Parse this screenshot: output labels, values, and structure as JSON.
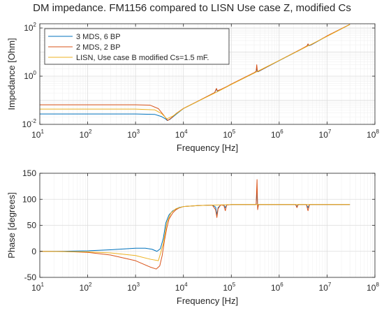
{
  "figure_title": "DM impedance. FM1156 compared to LISN Use case Z, modified Cs",
  "chart_data": [
    {
      "type": "line",
      "xscale": "log",
      "yscale": "log",
      "xlabel": "Frequency [Hz]",
      "ylabel": "Impedance [Ohm]",
      "xlim": [
        10,
        100000000
      ],
      "ylim": [
        0.01,
        150
      ],
      "xticks": [
        {
          "value": 10,
          "base": "10",
          "exp": "1"
        },
        {
          "value": 100,
          "base": "10",
          "exp": "2"
        },
        {
          "value": 1000,
          "base": "10",
          "exp": "3"
        },
        {
          "value": 10000,
          "base": "10",
          "exp": "4"
        },
        {
          "value": 100000,
          "base": "10",
          "exp": "5"
        },
        {
          "value": 1000000,
          "base": "10",
          "exp": "6"
        },
        {
          "value": 10000000,
          "base": "10",
          "exp": "7"
        },
        {
          "value": 100000000,
          "base": "10",
          "exp": "8"
        }
      ],
      "yticks": [
        {
          "value": 0.01,
          "base": "10",
          "exp": "-2"
        },
        {
          "value": 1,
          "base": "10",
          "exp": "0"
        },
        {
          "value": 100,
          "base": "10",
          "exp": "2"
        }
      ],
      "grid": true,
      "legend_position": "top-left",
      "series": [
        {
          "name": "3 MDS, 6 BP",
          "color": "#0072BD",
          "x": [
            10,
            100,
            1000,
            2500,
            3500,
            4200,
            4600,
            5200,
            7000,
            10000,
            20000,
            45000,
            47000,
            49000,
            51000,
            60000,
            80000,
            100000,
            300000,
            330000,
            340000,
            350000,
            360000,
            1000000,
            3000000,
            3800000,
            4000000,
            4200000,
            4600000,
            10000000,
            30000000
          ],
          "y": [
            0.027,
            0.027,
            0.027,
            0.026,
            0.021,
            0.017,
            0.0145,
            0.016,
            0.026,
            0.045,
            0.09,
            0.21,
            0.25,
            0.3,
            0.24,
            0.27,
            0.36,
            0.46,
            1.35,
            1.5,
            2.1,
            1.55,
            1.52,
            4.4,
            13.5,
            17.5,
            21,
            18.5,
            19.5,
            46,
            140
          ]
        },
        {
          "name": "2 MDS, 2 BP",
          "color": "#D95319",
          "x": [
            10,
            100,
            1000,
            2000,
            3000,
            4000,
            4700,
            5500,
            7000,
            10000,
            20000,
            45000,
            47000,
            49000,
            51000,
            60000,
            80000,
            100000,
            300000,
            330000,
            340000,
            350000,
            360000,
            1000000,
            3000000,
            3800000,
            4000000,
            4200000,
            4600000,
            10000000,
            30000000
          ],
          "y": [
            0.065,
            0.065,
            0.065,
            0.063,
            0.045,
            0.022,
            0.0145,
            0.018,
            0.028,
            0.046,
            0.092,
            0.21,
            0.26,
            0.31,
            0.25,
            0.28,
            0.37,
            0.47,
            1.4,
            1.6,
            3.0,
            1.7,
            1.55,
            4.5,
            14,
            18,
            22,
            19,
            20,
            47,
            142
          ]
        },
        {
          "name": "LISN, Use case B modified Cs=1.5 mF.",
          "color": "#EDB120",
          "x": [
            10,
            100,
            1000,
            2500,
            3500,
            4500,
            6000,
            8000,
            10000,
            20000,
            50000,
            100000,
            300000,
            1000000,
            3000000,
            10000000,
            30000000
          ],
          "y": [
            0.043,
            0.043,
            0.043,
            0.04,
            0.028,
            0.017,
            0.022,
            0.033,
            0.045,
            0.09,
            0.22,
            0.45,
            1.35,
            4.5,
            13.5,
            45,
            140
          ]
        }
      ]
    },
    {
      "type": "line",
      "xscale": "log",
      "yscale": "linear",
      "xlabel": "Frequency [Hz]",
      "ylabel": "Phase [degrees]",
      "xlim": [
        10,
        100000000
      ],
      "ylim": [
        -50,
        150
      ],
      "xticks": [
        {
          "value": 10,
          "base": "10",
          "exp": "1"
        },
        {
          "value": 100,
          "base": "10",
          "exp": "2"
        },
        {
          "value": 1000,
          "base": "10",
          "exp": "3"
        },
        {
          "value": 10000,
          "base": "10",
          "exp": "4"
        },
        {
          "value": 100000,
          "base": "10",
          "exp": "5"
        },
        {
          "value": 1000000,
          "base": "10",
          "exp": "6"
        },
        {
          "value": 10000000,
          "base": "10",
          "exp": "7"
        },
        {
          "value": 100000000,
          "base": "10",
          "exp": "8"
        }
      ],
      "yticks": [
        {
          "value": -50,
          "label": "-50"
        },
        {
          "value": 0,
          "label": "0"
        },
        {
          "value": 50,
          "label": "50"
        },
        {
          "value": 100,
          "label": "100"
        },
        {
          "value": 150,
          "label": "150"
        }
      ],
      "grid": true,
      "series": [
        {
          "name": "3 MDS, 6 BP",
          "color": "#0072BD",
          "x": [
            10,
            30,
            100,
            300,
            1000,
            1600,
            2200,
            2800,
            3300,
            3800,
            4300,
            5000,
            6000,
            8000,
            10000,
            20000,
            40000,
            47000,
            50000,
            53000,
            60000,
            70000,
            75000,
            80000,
            100000,
            300000,
            330000,
            345000,
            355000,
            370000,
            400000,
            1000000,
            2200000,
            2350000,
            2500000,
            3000000,
            3700000,
            4000000,
            4300000,
            5000000,
            10000000,
            30000000
          ],
          "y": [
            0,
            0.2,
            1,
            3,
            6,
            6,
            4,
            0,
            5,
            25,
            55,
            70,
            78,
            84,
            86,
            88,
            89,
            85,
            70,
            84,
            89,
            89,
            84,
            89,
            90,
            90,
            90,
            120,
            82,
            90,
            90,
            90,
            90,
            86,
            90,
            90,
            90,
            84,
            90,
            90,
            90,
            90
          ]
        },
        {
          "name": "2 MDS, 2 BP",
          "color": "#D95319",
          "x": [
            10,
            30,
            100,
            300,
            1000,
            2000,
            2700,
            3200,
            3600,
            4000,
            4500,
            5000,
            6000,
            7000,
            8000,
            10000,
            20000,
            40000,
            47000,
            50000,
            53000,
            60000,
            70000,
            75000,
            80000,
            100000,
            300000,
            330000,
            345000,
            355000,
            370000,
            400000,
            1000000,
            2200000,
            2350000,
            2500000,
            3000000,
            3700000,
            4000000,
            4300000,
            5000000,
            10000000,
            30000000
          ],
          "y": [
            0,
            -0.2,
            -2,
            -7,
            -18,
            -30,
            -34,
            -28,
            -8,
            20,
            45,
            62,
            74,
            80,
            83,
            86,
            88,
            89,
            80,
            65,
            82,
            89,
            88,
            78,
            89,
            90,
            90,
            90,
            138,
            80,
            90,
            90,
            90,
            90,
            84,
            90,
            90,
            90,
            78,
            90,
            90,
            90,
            90
          ]
        },
        {
          "name": "LISN, Use case B modified Cs=1.5 mF.",
          "color": "#EDB120",
          "x": [
            10,
            100,
            300,
            1000,
            2000,
            3000,
            3800,
            4500,
            5500,
            7000,
            10000,
            20000,
            100000,
            30000000
          ],
          "y": [
            0,
            -1,
            -3,
            -8,
            -15,
            -18,
            15,
            55,
            74,
            82,
            86,
            88,
            90,
            90
          ]
        }
      ]
    }
  ]
}
